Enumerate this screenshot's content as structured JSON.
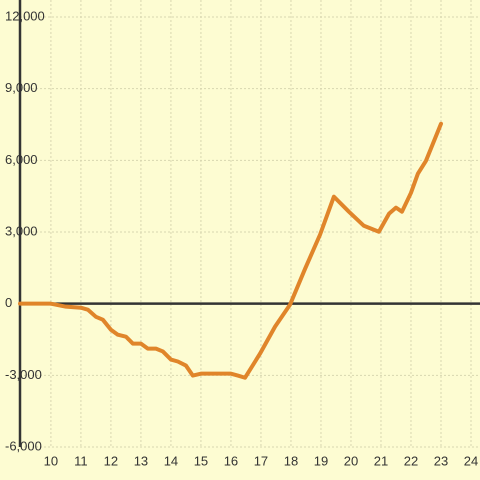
{
  "chart_data": {
    "type": "line",
    "x": [
      8.97,
      10,
      10.5,
      11,
      11.23,
      11.5,
      11.73,
      12,
      12.23,
      12.5,
      12.73,
      13,
      13.23,
      13.5,
      13.73,
      14,
      14.23,
      14.5,
      14.73,
      15,
      16,
      16.23,
      16.47,
      16.97,
      17.47,
      17.97,
      18.47,
      18.97,
      19.43,
      19.93,
      20.43,
      20.93,
      21.27,
      21.5,
      21.7,
      22,
      22.23,
      22.5,
      23
    ],
    "series": [
      {
        "color": "#e0852a",
        "values": [
          0,
          0,
          -125,
          -170,
          -250,
          -550,
          -670,
          -1090,
          -1300,
          -1380,
          -1670,
          -1670,
          -1880,
          -1880,
          -2000,
          -2340,
          -2420,
          -2590,
          -3010,
          -2930,
          -2930,
          -3010,
          -3100,
          -2090,
          -960,
          -40,
          1460,
          2890,
          4480,
          3850,
          3260,
          3010,
          3770,
          4020,
          3850,
          4640,
          5440,
          5980,
          7530
        ]
      }
    ],
    "xlim": [
      8.97,
      24.3
    ],
    "ylim": [
      -7380,
      12710
    ],
    "xticks": [
      10,
      11,
      12,
      13,
      14,
      15,
      16,
      17,
      18,
      19,
      20,
      21,
      22,
      23,
      24
    ],
    "yticks": [
      {
        "value": 12000,
        "label": "12,000"
      },
      {
        "value": 9000,
        "label": "9,000"
      },
      {
        "value": 6000,
        "label": "6,000"
      },
      {
        "value": 3000,
        "label": "3,000"
      },
      0,
      {
        "value": -3000,
        "label": "-3,000"
      },
      {
        "value": -6000,
        "label": "-6,000"
      }
    ],
    "grid": true
  }
}
